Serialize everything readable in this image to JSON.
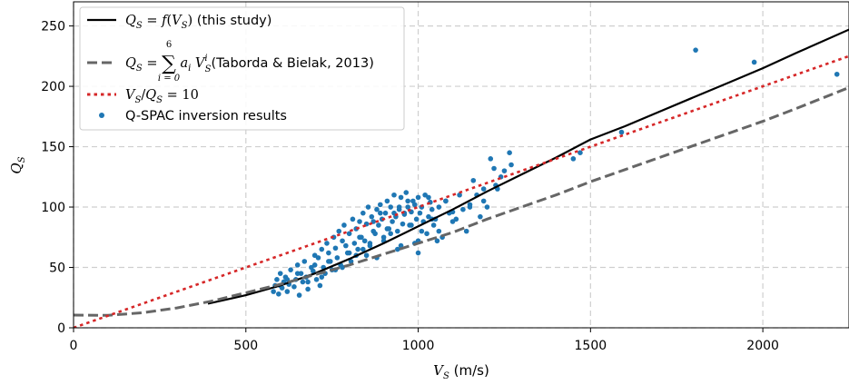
{
  "chart_data": {
    "type": "scatter",
    "xlabel": "V_S (m/s)",
    "ylabel": "Q_S",
    "xlim": [
      0,
      2250
    ],
    "ylim": [
      0,
      270
    ],
    "xticks": [
      0,
      500,
      1000,
      1500,
      2000
    ],
    "yticks": [
      0,
      50,
      100,
      150,
      200,
      250
    ],
    "grid": true,
    "legend_position": "top-left",
    "legend": [
      {
        "key": "this_study",
        "text": "Q_S = f(V_S) (this study)",
        "style": "solid",
        "color": "#000000"
      },
      {
        "key": "taborda",
        "text": "Q_S = Σ a_i V_S^i (Taborda & Bielak, 2013)",
        "sum_from": "i = 0",
        "sum_to": "6",
        "suffix": "(Taborda & Bielak, 2013)",
        "style": "dashed",
        "color": "#666666"
      },
      {
        "key": "ratio",
        "text": "V_S/Q_S = 10",
        "style": "dotted",
        "color": "#d62728"
      },
      {
        "key": "qspac",
        "text": "Q-SPAC inversion results",
        "style": "points",
        "color": "#1f77b4"
      }
    ],
    "series": [
      {
        "key": "this_study",
        "type": "line",
        "color": "#000000",
        "x": [
          390,
          500,
          600,
          700,
          800,
          900,
          1000,
          1100,
          1200,
          1300,
          1400,
          1500,
          1600,
          1700,
          1800,
          1900,
          2000,
          2100,
          2250
        ],
        "y": [
          20,
          27,
          35,
          45,
          57,
          70,
          84,
          98,
          113,
          127,
          141,
          156,
          167,
          179,
          191,
          203,
          215,
          228,
          247
        ]
      },
      {
        "key": "taborda",
        "type": "line",
        "color": "#666666",
        "x": [
          0,
          100,
          200,
          300,
          400,
          500,
          600,
          700,
          800,
          900,
          1000,
          1100,
          1200,
          1300,
          1400,
          1500,
          1600,
          1700,
          1800,
          1900,
          2000,
          2100,
          2250
        ],
        "y": [
          10.5,
          10.3,
          12.5,
          16.5,
          22,
          29,
          36,
          44,
          52,
          61,
          70,
          79,
          90,
          100,
          110,
          121,
          131,
          141,
          151,
          161,
          171,
          182,
          199
        ]
      },
      {
        "key": "ratio",
        "type": "line",
        "color": "#d62728",
        "x": [
          0,
          2250
        ],
        "y": [
          0,
          225
        ]
      },
      {
        "key": "qspac",
        "type": "scatter",
        "color": "#1f77b4",
        "x": [
          580,
          585,
          590,
          595,
          600,
          605,
          610,
          615,
          620,
          625,
          630,
          640,
          645,
          650,
          655,
          660,
          665,
          670,
          675,
          680,
          690,
          695,
          700,
          705,
          710,
          715,
          720,
          725,
          730,
          735,
          740,
          745,
          750,
          755,
          760,
          765,
          770,
          775,
          780,
          785,
          790,
          795,
          800,
          805,
          810,
          815,
          820,
          825,
          830,
          835,
          840,
          845,
          850,
          855,
          860,
          865,
          870,
          875,
          880,
          885,
          890,
          895,
          900,
          905,
          910,
          915,
          920,
          925,
          930,
          935,
          940,
          945,
          950,
          955,
          960,
          965,
          970,
          975,
          980,
          985,
          990,
          995,
          1000,
          1005,
          1010,
          1015,
          1020,
          1025,
          1030,
          1035,
          1040,
          1045,
          1050,
          1060,
          1070,
          1080,
          1090,
          1100,
          1110,
          1120,
          1130,
          1140,
          1150,
          1160,
          1170,
          1180,
          1190,
          1200,
          1210,
          1220,
          1230,
          1240,
          1250,
          1265,
          1270,
          1450,
          1470,
          1590,
          1805,
          1975,
          2215,
          650,
          700,
          760,
          820,
          880,
          940,
          1000,
          1060,
          620,
          680,
          740,
          800,
          860,
          920,
          980,
          1040,
          600,
          720,
          840,
          960,
          1080,
          900,
          950,
          1000,
          870,
          930,
          990,
          850,
          910,
          970,
          1030,
          780,
          830,
          890,
          945,
          1010,
          1055,
          1100,
          1150,
          1190,
          1225
        ],
        "y": [
          30,
          35,
          40,
          28,
          45,
          33,
          38,
          42,
          30,
          36,
          48,
          34,
          40,
          52,
          27,
          45,
          38,
          55,
          42,
          32,
          50,
          47,
          60,
          40,
          58,
          35,
          65,
          50,
          45,
          70,
          62,
          55,
          48,
          75,
          66,
          58,
          80,
          52,
          72,
          85,
          68,
          62,
          78,
          55,
          90,
          70,
          82,
          65,
          88,
          75,
          95,
          72,
          86,
          100,
          68,
          92,
          80,
          78,
          98,
          85,
          102,
          90,
          75,
          95,
          105,
          82,
          100,
          88,
          110,
          92,
          80,
          98,
          108,
          86,
          94,
          112,
          100,
          85,
          96,
          105,
          70,
          90,
          108,
          95,
          100,
          88,
          110,
          78,
          92,
          104,
          98,
          85,
          90,
          100,
          75,
          105,
          95,
          88,
          90,
          110,
          98,
          80,
          100,
          122,
          110,
          92,
          105,
          100,
          140,
          132,
          115,
          125,
          130,
          145,
          135,
          140,
          145,
          162,
          230,
          220,
          210,
          45,
          52,
          48,
          60,
          58,
          65,
          72,
          80,
          40,
          38,
          55,
          62,
          70,
          78,
          85,
          90,
          35,
          42,
          65,
          95,
          105,
          72,
          68,
          62,
          88,
          95,
          102,
          60,
          82,
          105,
          108,
          50,
          75,
          95,
          100,
          80,
          72,
          96,
          102,
          115,
          118
        ]
      }
    ]
  }
}
